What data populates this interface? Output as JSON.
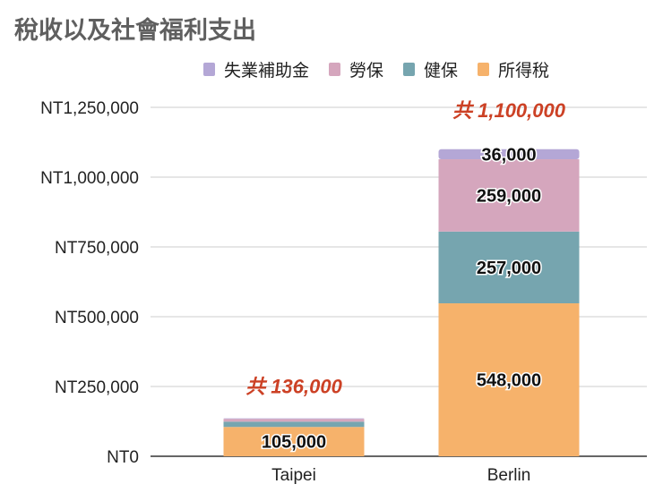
{
  "chart_data": {
    "type": "bar",
    "stacked": true,
    "title": "稅收以及社會福利支出",
    "xlabel": "",
    "ylabel": "",
    "categories": [
      "Taipei",
      "Berlin"
    ],
    "series": [
      {
        "name": "所得稅",
        "color": "#f6b26b",
        "values": [
          105000,
          548000
        ],
        "labels": [
          "105,000",
          "548,000"
        ]
      },
      {
        "name": "健保",
        "color": "#76a5af",
        "values": [
          19000,
          257000
        ],
        "labels": [
          "",
          "257,000"
        ]
      },
      {
        "name": "勞保",
        "color": "#d5a6bd",
        "values": [
          10000,
          259000
        ],
        "labels": [
          "",
          "259,000"
        ]
      },
      {
        "name": "失業補助金",
        "color": "#b4a7d6",
        "values": [
          2000,
          36000
        ],
        "labels": [
          "",
          "36,000"
        ]
      }
    ],
    "legend_order": [
      "失業補助金",
      "勞保",
      "健保",
      "所得稅"
    ],
    "legend_position": "top",
    "totals": [
      136000,
      1100000
    ],
    "total_labels": [
      "共 136,000",
      "共 1,100,000"
    ],
    "total_label_color": "#cc4125",
    "ylim": [
      0,
      1250000
    ],
    "yticks": [
      0,
      250000,
      500000,
      750000,
      1000000,
      1250000
    ],
    "ytick_labels": [
      "NT0",
      "NT250,000",
      "NT500,000",
      "NT750,000",
      "NT1,000,000",
      "NT1,250,000"
    ],
    "grid": true
  }
}
